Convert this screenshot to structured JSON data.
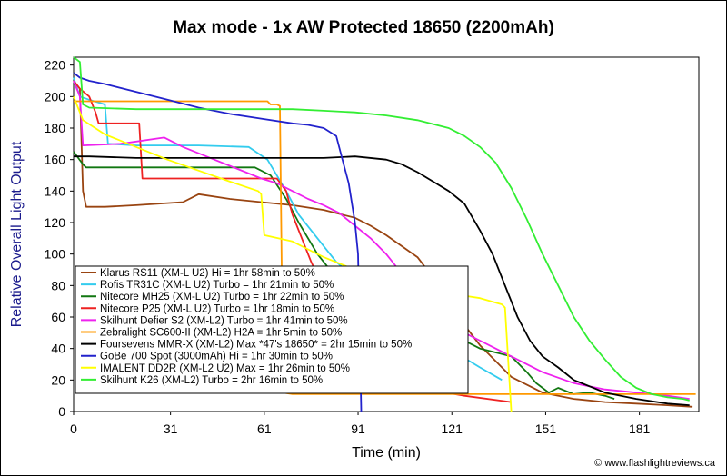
{
  "chart_data": {
    "type": "line",
    "title": "Max mode - 1x AW Protected 18650 (2200mAh)",
    "xlabel": "Time (min)",
    "ylabel": "Relative Overall Light Output",
    "xlim": [
      0,
      200
    ],
    "ylim": [
      0,
      225
    ],
    "x_ticks": [
      0,
      31,
      61,
      91,
      121,
      151,
      181
    ],
    "y_ticks": [
      0,
      20,
      40,
      60,
      80,
      100,
      120,
      140,
      160,
      180,
      200,
      220
    ],
    "grid": false,
    "legend_position": "lower-left",
    "credit": "© www.flashlightreviews.ca",
    "series": [
      {
        "name": "Klarus RS11 (XM-L U2) Hi = 1hr 58min to 50%",
        "color": "#994411",
        "points": [
          [
            0,
            210
          ],
          [
            2,
            205
          ],
          [
            3,
            140
          ],
          [
            4,
            130
          ],
          [
            10,
            130
          ],
          [
            20,
            131
          ],
          [
            35,
            133
          ],
          [
            40,
            138
          ],
          [
            50,
            135
          ],
          [
            60,
            133
          ],
          [
            70,
            131
          ],
          [
            80,
            128
          ],
          [
            90,
            123
          ],
          [
            95,
            118
          ],
          [
            100,
            112
          ],
          [
            105,
            105
          ],
          [
            110,
            98
          ],
          [
            115,
            85
          ],
          [
            120,
            70
          ],
          [
            125,
            55
          ],
          [
            130,
            42
          ],
          [
            135,
            32
          ],
          [
            140,
            22
          ],
          [
            150,
            12
          ],
          [
            160,
            8
          ],
          [
            170,
            6
          ],
          [
            180,
            5
          ],
          [
            190,
            4
          ],
          [
            198,
            3
          ]
        ]
      },
      {
        "name": "Rofis TR31C (XM-L U2) Turbo = 1hr 21min to 50%",
        "color": "#33ccee",
        "points": [
          [
            0,
            212
          ],
          [
            2,
            200
          ],
          [
            5,
            198
          ],
          [
            10,
            195
          ],
          [
            11,
            170
          ],
          [
            20,
            169
          ],
          [
            40,
            169
          ],
          [
            56,
            168
          ],
          [
            62,
            160
          ],
          [
            68,
            140
          ],
          [
            72,
            125
          ],
          [
            78,
            110
          ],
          [
            84,
            95
          ],
          [
            90,
            85
          ],
          [
            100,
            70
          ],
          [
            110,
            55
          ],
          [
            120,
            40
          ],
          [
            130,
            28
          ],
          [
            137,
            20
          ]
        ]
      },
      {
        "name": "Nitecore MH25 (XM-L U2) Turbo = 1hr 22min to 50%",
        "color": "#117711",
        "points": [
          [
            0,
            165
          ],
          [
            3,
            157
          ],
          [
            4,
            155
          ],
          [
            20,
            155
          ],
          [
            40,
            155
          ],
          [
            58,
            155
          ],
          [
            63,
            150
          ],
          [
            68,
            135
          ],
          [
            72,
            120
          ],
          [
            78,
            100
          ],
          [
            84,
            85
          ],
          [
            90,
            75
          ],
          [
            100,
            65
          ],
          [
            110,
            58
          ],
          [
            120,
            50
          ],
          [
            130,
            40
          ],
          [
            140,
            35
          ],
          [
            145,
            25
          ],
          [
            148,
            18
          ],
          [
            150,
            15
          ],
          [
            152,
            12
          ],
          [
            155,
            15
          ],
          [
            160,
            11
          ],
          [
            165,
            12
          ],
          [
            170,
            10
          ],
          [
            173,
            8
          ]
        ]
      },
      {
        "name": "Nitecore P25 (XM-L U2) Turbo = 1hr 18min to 50%",
        "color": "#ee2222",
        "points": [
          [
            0,
            210
          ],
          [
            2,
            205
          ],
          [
            5,
            200
          ],
          [
            7,
            190
          ],
          [
            8,
            183
          ],
          [
            15,
            183
          ],
          [
            21,
            183
          ],
          [
            22,
            148
          ],
          [
            30,
            148
          ],
          [
            40,
            148
          ],
          [
            50,
            148
          ],
          [
            60,
            148
          ],
          [
            65,
            148
          ],
          [
            68,
            140
          ],
          [
            70,
            125
          ],
          [
            73,
            110
          ],
          [
            76,
            95
          ],
          [
            79,
            82
          ],
          [
            82,
            70
          ],
          [
            85,
            55
          ],
          [
            88,
            42
          ],
          [
            92,
            30
          ],
          [
            100,
            20
          ],
          [
            110,
            15
          ],
          [
            125,
            10
          ],
          [
            140,
            6
          ]
        ]
      },
      {
        "name": "Skilhunt Defier S2 (XM-L2) Turbo = 1hr 41min to 50%",
        "color": "#ee22ee",
        "points": [
          [
            0,
            210
          ],
          [
            2,
            200
          ],
          [
            3,
            169
          ],
          [
            15,
            170
          ],
          [
            29,
            174
          ],
          [
            35,
            168
          ],
          [
            45,
            160
          ],
          [
            55,
            152
          ],
          [
            60,
            148
          ],
          [
            65,
            145
          ],
          [
            70,
            140
          ],
          [
            75,
            135
          ],
          [
            80,
            131
          ],
          [
            85,
            126
          ],
          [
            90,
            118
          ],
          [
            95,
            110
          ],
          [
            100,
            100
          ],
          [
            104,
            90
          ],
          [
            110,
            75
          ],
          [
            115,
            65
          ],
          [
            120,
            55
          ],
          [
            130,
            45
          ],
          [
            140,
            35
          ],
          [
            150,
            25
          ],
          [
            160,
            18
          ],
          [
            170,
            14
          ],
          [
            180,
            12
          ],
          [
            190,
            10
          ],
          [
            197,
            8
          ]
        ]
      },
      {
        "name": "Zebralight SC600-II (XM-L2) H2A = 1hr 5min to 50%",
        "color": "#ff9900",
        "points": [
          [
            0,
            197
          ],
          [
            10,
            197
          ],
          [
            20,
            197
          ],
          [
            40,
            197
          ],
          [
            55,
            197
          ],
          [
            61,
            197
          ],
          [
            62,
            197
          ],
          [
            63,
            195
          ],
          [
            64,
            195
          ],
          [
            65,
            195
          ],
          [
            66,
            194
          ],
          [
            67,
            12
          ],
          [
            70,
            11
          ],
          [
            100,
            11
          ],
          [
            150,
            11
          ],
          [
            199,
            11
          ]
        ]
      },
      {
        "name": "Foursevens MMR-X (XM-L2) Max *47's 18650* = 2hr 15min to 50%",
        "color": "#000000",
        "points": [
          [
            0,
            162
          ],
          [
            5,
            162
          ],
          [
            20,
            161
          ],
          [
            40,
            161
          ],
          [
            60,
            161
          ],
          [
            80,
            161
          ],
          [
            90,
            162
          ],
          [
            100,
            160
          ],
          [
            105,
            157
          ],
          [
            110,
            152
          ],
          [
            115,
            146
          ],
          [
            120,
            140
          ],
          [
            125,
            132
          ],
          [
            130,
            115
          ],
          [
            134,
            100
          ],
          [
            138,
            80
          ],
          [
            142,
            60
          ],
          [
            146,
            45
          ],
          [
            150,
            35
          ],
          [
            155,
            28
          ],
          [
            160,
            20
          ],
          [
            170,
            12
          ],
          [
            180,
            8
          ],
          [
            190,
            5
          ],
          [
            197,
            4
          ]
        ]
      },
      {
        "name": "GoBe 700 Spot (3000mAh) Hi = 1hr 30min to 50%",
        "color": "#2222cc",
        "points": [
          [
            0,
            215
          ],
          [
            2,
            212
          ],
          [
            5,
            210
          ],
          [
            10,
            208
          ],
          [
            20,
            203
          ],
          [
            30,
            198
          ],
          [
            40,
            193
          ],
          [
            50,
            189
          ],
          [
            60,
            186
          ],
          [
            70,
            183
          ],
          [
            75,
            182
          ],
          [
            80,
            180
          ],
          [
            84,
            175
          ],
          [
            86,
            160
          ],
          [
            88,
            145
          ],
          [
            90,
            120
          ],
          [
            91,
            100
          ],
          [
            92,
            0
          ]
        ]
      },
      {
        "name": "IMALENT DD2R (XM-L2 U2) Max = 1hr 26min to 50%",
        "color": "#ffff00",
        "points": [
          [
            0,
            200
          ],
          [
            3,
            185
          ],
          [
            10,
            176
          ],
          [
            20,
            168
          ],
          [
            30,
            160
          ],
          [
            40,
            153
          ],
          [
            50,
            146
          ],
          [
            59,
            140
          ],
          [
            60,
            138
          ],
          [
            61,
            112
          ],
          [
            70,
            108
          ],
          [
            75,
            103
          ],
          [
            80,
            98
          ],
          [
            90,
            90
          ],
          [
            100,
            85
          ],
          [
            110,
            80
          ],
          [
            120,
            75
          ],
          [
            130,
            72
          ],
          [
            137,
            68
          ],
          [
            138,
            66
          ],
          [
            140,
            0
          ]
        ]
      },
      {
        "name": "Skilhunt K26 (XM-L2) Turbo = 2hr 16min to 50%",
        "color": "#33ee33",
        "points": [
          [
            0,
            225
          ],
          [
            2,
            222
          ],
          [
            3,
            195
          ],
          [
            5,
            193
          ],
          [
            20,
            192
          ],
          [
            40,
            192
          ],
          [
            60,
            192
          ],
          [
            70,
            192
          ],
          [
            80,
            191
          ],
          [
            90,
            190
          ],
          [
            100,
            188
          ],
          [
            110,
            185
          ],
          [
            120,
            180
          ],
          [
            125,
            175
          ],
          [
            130,
            168
          ],
          [
            135,
            158
          ],
          [
            140,
            142
          ],
          [
            145,
            122
          ],
          [
            150,
            100
          ],
          [
            155,
            80
          ],
          [
            160,
            60
          ],
          [
            165,
            45
          ],
          [
            170,
            33
          ],
          [
            175,
            22
          ],
          [
            180,
            15
          ],
          [
            185,
            11
          ],
          [
            190,
            9
          ],
          [
            195,
            8
          ],
          [
            197,
            7
          ]
        ]
      }
    ]
  }
}
